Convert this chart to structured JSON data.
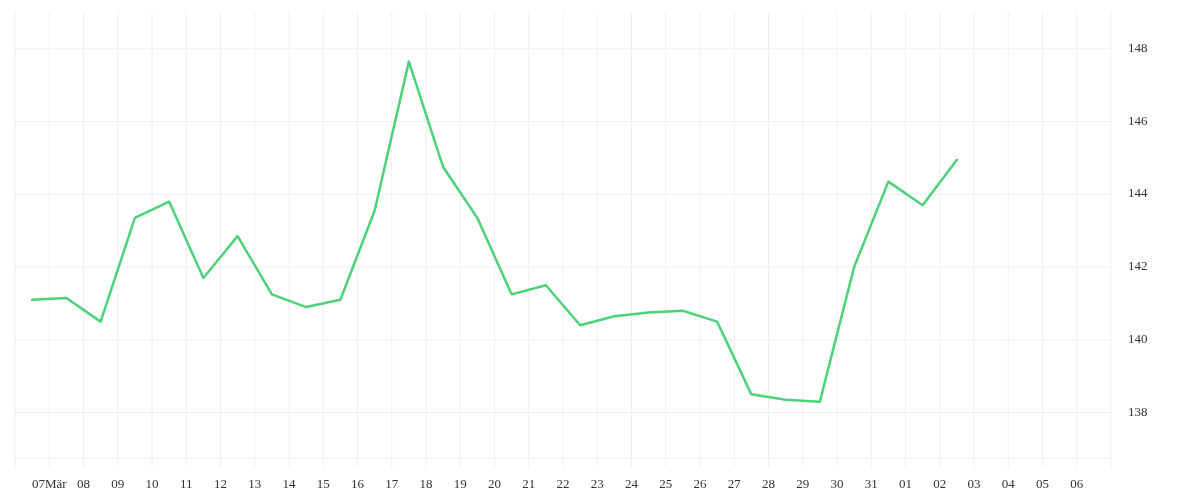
{
  "chart_data": {
    "type": "line",
    "x": [
      "--03-06T12:00",
      "--03-07T12:00",
      "--03-08T12:00",
      "--03-09T12:00",
      "--03-10T12:00",
      "--03-11T12:00",
      "--03-12T12:00",
      "--03-13T12:00",
      "--03-14T12:00",
      "--03-15T12:00",
      "--03-16T12:00",
      "--03-17T12:00",
      "--03-18T12:00",
      "--03-19T12:00",
      "--03-20T12:00",
      "--03-21T12:00",
      "--03-22T12:00",
      "--03-23T12:00",
      "--03-24T12:00",
      "--03-25T12:00",
      "--03-26T12:00",
      "--03-27T12:00",
      "--03-28T12:00",
      "--03-29T12:00",
      "--03-30T12:00",
      "--03-31T12:00",
      "--04-01T12:00",
      "--04-02T12:00"
    ],
    "series": [
      {
        "color": "#4cd27a",
        "values": [
          141.1,
          141.15,
          140.5,
          143.35,
          143.8,
          141.7,
          142.85,
          141.25,
          140.9,
          141.1,
          143.55,
          147.65,
          144.75,
          143.35,
          141.25,
          141.5,
          140.4,
          140.65,
          140.75,
          140.8,
          140.5,
          138.5,
          138.35,
          138.3,
          142.0,
          144.35,
          143.7,
          144.95
        ]
      }
    ],
    "xlim": [
      "--03-06",
      "--04-07"
    ],
    "xticks": [
      {
        "value": "--03-06",
        "label": null
      },
      {
        "value": "--03-07",
        "label": "07Mär"
      },
      {
        "value": "--03-08",
        "label": "08"
      },
      {
        "value": "--03-09",
        "label": "09"
      },
      {
        "value": "--03-10",
        "label": "10"
      },
      {
        "value": "--03-11",
        "label": "11"
      },
      {
        "value": "--03-12",
        "label": "12"
      },
      {
        "value": "--03-13",
        "label": "13"
      },
      {
        "value": "--03-14",
        "label": "14"
      },
      {
        "value": "--03-15",
        "label": "15"
      },
      {
        "value": "--03-16",
        "label": "16"
      },
      {
        "value": "--03-17",
        "label": "17"
      },
      {
        "value": "--03-18",
        "label": "18"
      },
      {
        "value": "--03-19",
        "label": "19"
      },
      {
        "value": "--03-20",
        "label": "20"
      },
      {
        "value": "--03-21",
        "label": "21"
      },
      {
        "value": "--03-22",
        "label": "22"
      },
      {
        "value": "--03-23",
        "label": "23"
      },
      {
        "value": "--03-24",
        "label": "24"
      },
      {
        "value": "--03-25",
        "label": "25"
      },
      {
        "value": "--03-26",
        "label": "26"
      },
      {
        "value": "--03-27",
        "label": "27"
      },
      {
        "value": "--03-28",
        "label": "28"
      },
      {
        "value": "--03-29",
        "label": "29"
      },
      {
        "value": "--03-30",
        "label": "30"
      },
      {
        "value": "--03-31",
        "label": "31"
      },
      {
        "value": "--04-01",
        "label": "01"
      },
      {
        "value": "--04-02",
        "label": "02"
      },
      {
        "value": "--04-03",
        "label": "03"
      },
      {
        "value": "--04-04",
        "label": "04"
      },
      {
        "value": "--04-05",
        "label": "05"
      },
      {
        "value": "--04-06",
        "label": "06"
      },
      {
        "value": "--04-07",
        "label": null
      }
    ],
    "ylim": [
      136.75,
      149
    ],
    "yticks": [
      138,
      140,
      142,
      144,
      146,
      148
    ],
    "grid": true
  }
}
